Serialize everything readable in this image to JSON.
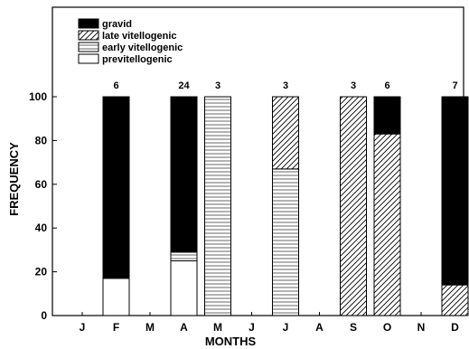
{
  "chart_data": {
    "type": "bar",
    "stacked": true,
    "xlabel": "MONTHS",
    "ylabel": "FREQUENCY",
    "ylim": [
      0,
      100
    ],
    "yticks": [
      0,
      20,
      40,
      60,
      80,
      100
    ],
    "categories": [
      "J",
      "F",
      "M",
      "A",
      "M",
      "J",
      "J",
      "A",
      "S",
      "O",
      "N",
      "D"
    ],
    "sample_sizes": [
      "",
      "6",
      "",
      "24",
      "3",
      "",
      "3",
      "",
      "3",
      "6",
      "",
      "7"
    ],
    "legend_position": "top-left",
    "series": [
      {
        "name": "previtellogenic",
        "pattern": "solid-white",
        "values": [
          0,
          17,
          0,
          25,
          0,
          0,
          0,
          0,
          0,
          0,
          0,
          0
        ]
      },
      {
        "name": "early vitellogenic",
        "pattern": "horizontal-lines",
        "values": [
          0,
          0,
          0,
          4,
          100,
          0,
          67,
          0,
          0,
          0,
          0,
          0
        ]
      },
      {
        "name": "late vitellogenic",
        "pattern": "diagonal-hatch",
        "values": [
          0,
          0,
          0,
          0,
          0,
          0,
          33,
          0,
          100,
          83,
          0,
          14
        ]
      },
      {
        "name": "gravid",
        "pattern": "solid-black",
        "values": [
          0,
          83,
          0,
          71,
          0,
          0,
          0,
          0,
          0,
          17,
          0,
          86
        ]
      }
    ],
    "legend_order": [
      3,
      2,
      1,
      0
    ]
  }
}
